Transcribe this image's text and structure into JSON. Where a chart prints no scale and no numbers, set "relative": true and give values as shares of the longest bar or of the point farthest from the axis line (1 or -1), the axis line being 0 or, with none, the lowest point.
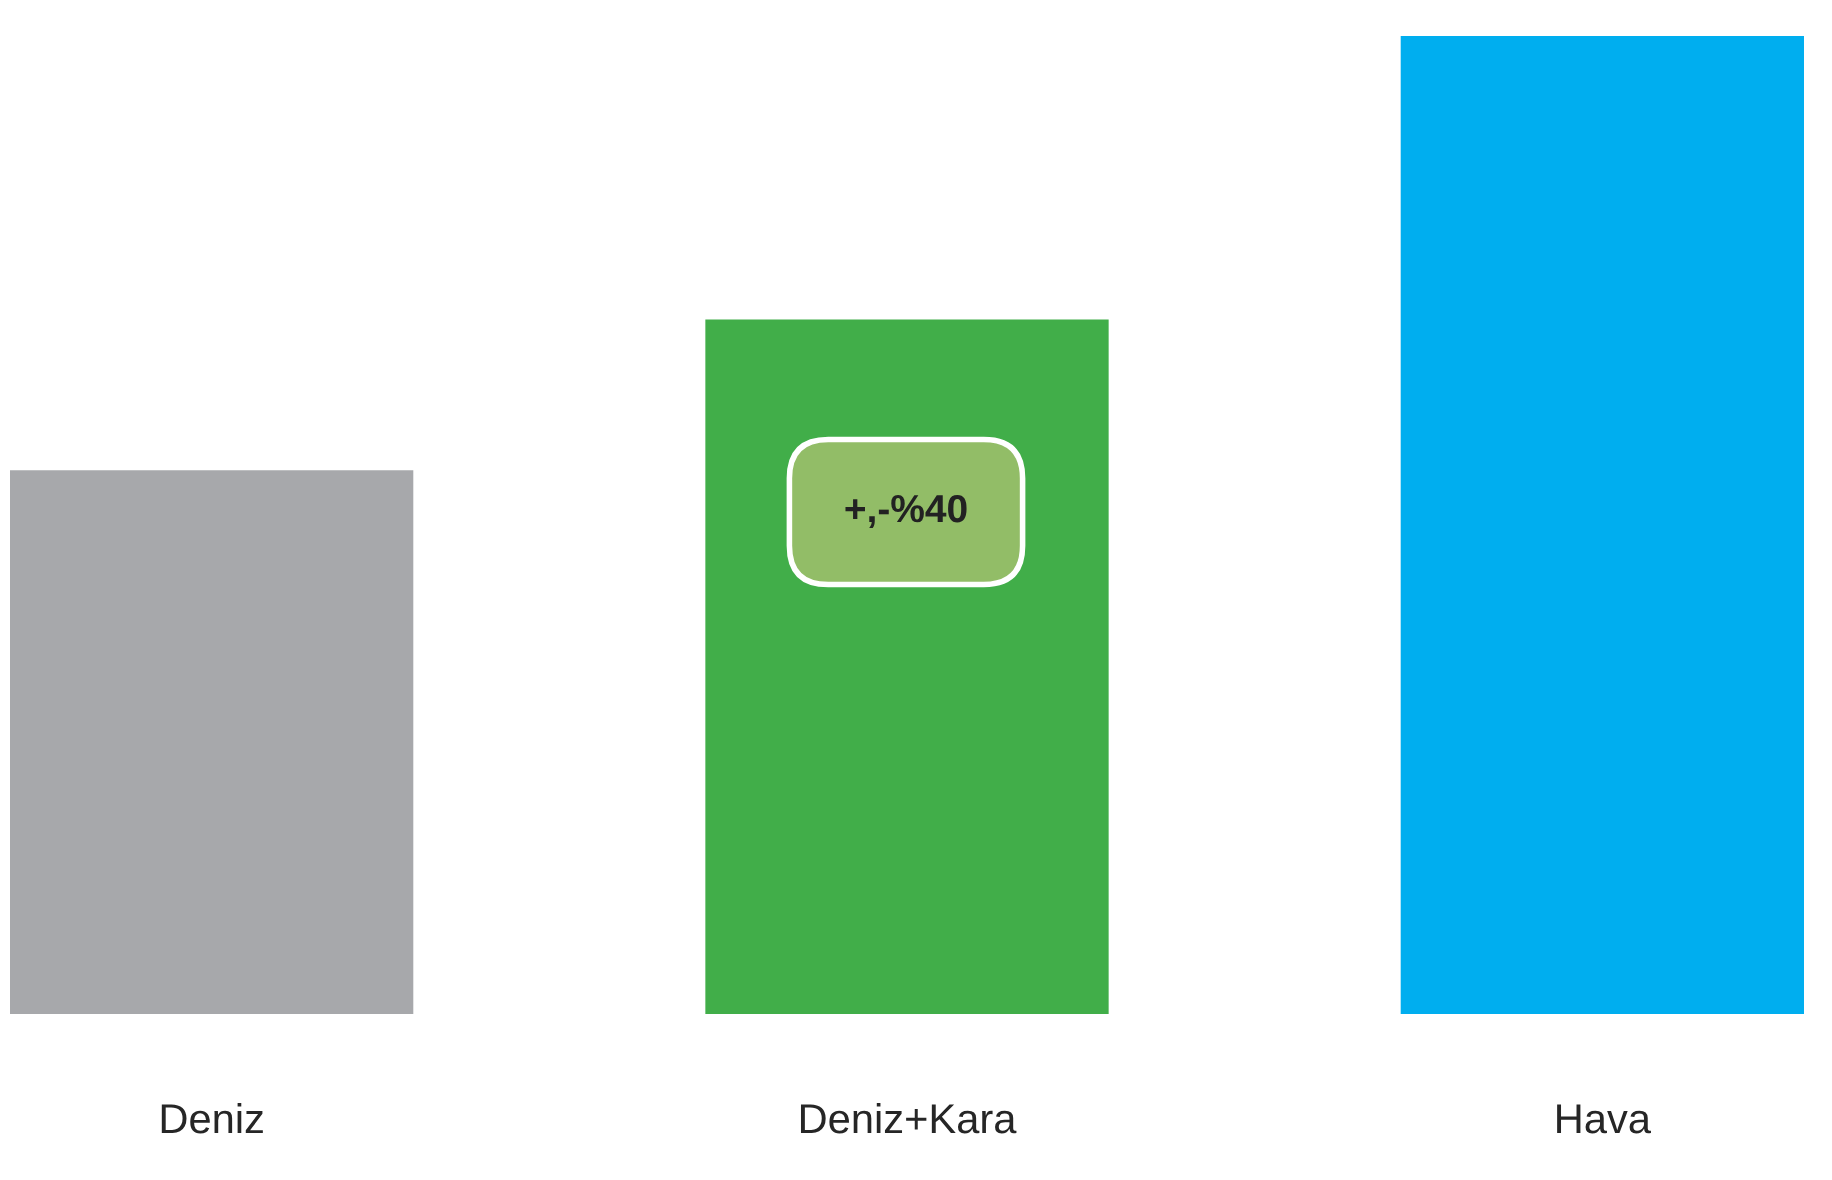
{
  "chart_data": {
    "type": "bar",
    "relative": true,
    "categories": [
      "Deniz",
      "Deniz+Kara",
      "Hava"
    ],
    "values": [
      0.556,
      0.71,
      1
    ],
    "colors": [
      "#a7a8ab",
      "#41ae49",
      "#00aeef"
    ],
    "annotations": [
      "+,-%40"
    ]
  }
}
